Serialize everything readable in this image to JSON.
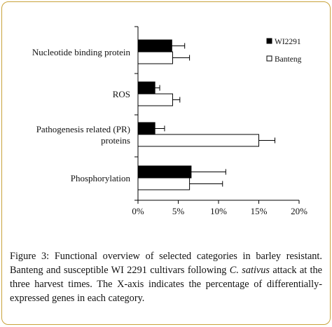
{
  "chart_data": {
    "type": "bar",
    "orientation": "horizontal",
    "categories": [
      "Nucleotide binding  protein",
      "ROS",
      "Pathogenesis related  (PR) proteins",
      "Phosphorylation"
    ],
    "category_label_lines": [
      [
        "Nucleotide binding  protein"
      ],
      [
        "ROS"
      ],
      [
        "Pathogenesis related  (PR)",
        "proteins"
      ],
      [
        "Phosphorylation"
      ]
    ],
    "series": [
      {
        "name": "WI2291",
        "values": [
          4.2,
          2.1,
          2.1,
          6.6
        ],
        "errors": [
          1.6,
          0.6,
          1.2,
          4.3
        ],
        "color": "#000000"
      },
      {
        "name": "Banteng",
        "values": [
          4.3,
          4.3,
          15.0,
          6.4
        ],
        "errors": [
          2.1,
          0.9,
          2.0,
          4.1
        ],
        "color": "#ffffff"
      }
    ],
    "xlim": [
      0,
      20
    ],
    "xticks": [
      "0%",
      "5%",
      "10%",
      "15%",
      "20%"
    ],
    "xlabel": "",
    "ylabel": "",
    "title": "",
    "grid": false,
    "legend_position": "top-right"
  },
  "caption": {
    "label": "Figure 3:",
    "text_before_italic": " Functional overview of selected categories in barley resistant. Banteng and susceptible WI 2291 cultivars following ",
    "italic": "C. sativus",
    "text_after_italic": " attack at the three harvest times. The X-axis indicates the percentage of differentially-expressed genes in each category."
  }
}
